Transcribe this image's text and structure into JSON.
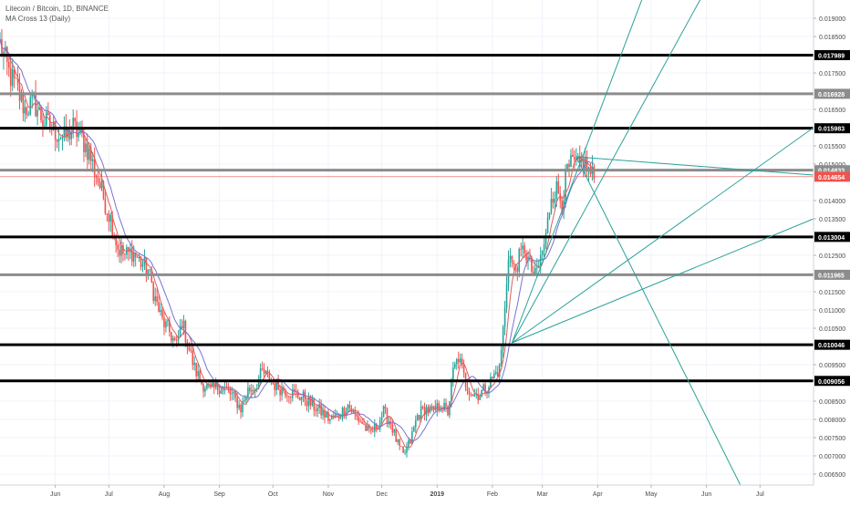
{
  "header": {
    "symbol_line": "Litecoin / Bitcoin, 1D, BINANCE",
    "indicator_line": "MA Cross 13 (Daily)"
  },
  "chart_data": {
    "type": "candlestick",
    "ylim": [
      0.0062,
      0.0195
    ],
    "x_domain": [
      "2018-05-01",
      "2019-07-31"
    ],
    "y_ticks": [
      "0.019000",
      "0.018500",
      "0.017500",
      "0.016500",
      "0.015500",
      "0.015000",
      "0.014000",
      "0.013500",
      "0.012500",
      "0.011500",
      "0.011000",
      "0.010500",
      "0.009500",
      "0.008500",
      "0.008000",
      "0.007500",
      "0.007000",
      "0.006500"
    ],
    "x_ticks": [
      {
        "label": "Jun",
        "date": "2018-06-01"
      },
      {
        "label": "Jul",
        "date": "2018-07-01"
      },
      {
        "label": "Aug",
        "date": "2018-08-01"
      },
      {
        "label": "Sep",
        "date": "2018-09-01"
      },
      {
        "label": "Oct",
        "date": "2018-10-01"
      },
      {
        "label": "Nov",
        "date": "2018-11-01"
      },
      {
        "label": "Dec",
        "date": "2018-12-01"
      },
      {
        "label": "2019",
        "date": "2019-01-01"
      },
      {
        "label": "Feb",
        "date": "2019-02-01"
      },
      {
        "label": "Mar",
        "date": "2019-03-01"
      },
      {
        "label": "Apr",
        "date": "2019-04-01"
      },
      {
        "label": "May",
        "date": "2019-05-01"
      },
      {
        "label": "Jun",
        "date": "2019-06-01"
      },
      {
        "label": "Jul",
        "date": "2019-07-01"
      }
    ],
    "horizontal_levels": [
      {
        "value": 0.017989,
        "label": "0.017989",
        "color": "#000000"
      },
      {
        "value": 0.016928,
        "label": "0.016928",
        "color": "#8c8c8c"
      },
      {
        "value": 0.015983,
        "label": "0.015983",
        "color": "#000000"
      },
      {
        "value": 0.014833,
        "label": "0.014833",
        "color": "#8c8c8c"
      },
      {
        "value": 0.013004,
        "label": "0.013004",
        "color": "#000000"
      },
      {
        "value": 0.011965,
        "label": "0.011965",
        "color": "#8c8c8c"
      },
      {
        "value": 0.010046,
        "label": "0.010046",
        "color": "#000000"
      },
      {
        "value": 0.009056,
        "label": "0.009056",
        "color": "#000000"
      }
    ],
    "last_price": {
      "value": 0.014654,
      "label": "0.014654",
      "color": "#ef5350"
    },
    "price_path": [
      [
        "2018-05-01",
        0.0183
      ],
      [
        "2018-05-06",
        0.0175
      ],
      [
        "2018-05-10",
        0.0171
      ],
      [
        "2018-05-15",
        0.0165
      ],
      [
        "2018-05-20",
        0.0167
      ],
      [
        "2018-05-25",
        0.0162
      ],
      [
        "2018-06-01",
        0.0159
      ],
      [
        "2018-06-06",
        0.0157
      ],
      [
        "2018-06-11",
        0.016
      ],
      [
        "2018-06-16",
        0.0157
      ],
      [
        "2018-06-20",
        0.0153
      ],
      [
        "2018-06-24",
        0.0147
      ],
      [
        "2018-06-28",
        0.0141
      ],
      [
        "2018-07-02",
        0.0135
      ],
      [
        "2018-07-06",
        0.0127
      ],
      [
        "2018-07-10",
        0.0125
      ],
      [
        "2018-07-14",
        0.0126
      ],
      [
        "2018-07-19",
        0.0123
      ],
      [
        "2018-07-23",
        0.0121
      ],
      [
        "2018-07-27",
        0.0113
      ],
      [
        "2018-07-31",
        0.0107
      ],
      [
        "2018-08-04",
        0.0104
      ],
      [
        "2018-08-08",
        0.01
      ],
      [
        "2018-08-11",
        0.0107
      ],
      [
        "2018-08-14",
        0.0101
      ],
      [
        "2018-08-18",
        0.0094
      ],
      [
        "2018-08-22",
        0.009
      ],
      [
        "2018-08-27",
        0.0088
      ],
      [
        "2018-09-01",
        0.0089
      ],
      [
        "2018-09-05",
        0.0088
      ],
      [
        "2018-09-09",
        0.0086
      ],
      [
        "2018-09-13",
        0.0083
      ],
      [
        "2018-09-17",
        0.0088
      ],
      [
        "2018-09-21",
        0.0089
      ],
      [
        "2018-09-25",
        0.0093
      ],
      [
        "2018-09-29",
        0.0091
      ],
      [
        "2018-10-03",
        0.0089
      ],
      [
        "2018-10-08",
        0.0088
      ],
      [
        "2018-10-13",
        0.0087
      ],
      [
        "2018-10-18",
        0.0086
      ],
      [
        "2018-10-23",
        0.0084
      ],
      [
        "2018-10-28",
        0.0082
      ],
      [
        "2018-11-02",
        0.008
      ],
      [
        "2018-11-07",
        0.0081
      ],
      [
        "2018-11-12",
        0.0084
      ],
      [
        "2018-11-16",
        0.0081
      ],
      [
        "2018-11-20",
        0.0079
      ],
      [
        "2018-11-24",
        0.0076
      ],
      [
        "2018-11-28",
        0.0078
      ],
      [
        "2018-12-02",
        0.0082
      ],
      [
        "2018-12-06",
        0.0079
      ],
      [
        "2018-12-10",
        0.0073
      ],
      [
        "2018-12-13",
        0.007
      ],
      [
        "2018-12-17",
        0.0074
      ],
      [
        "2018-12-21",
        0.0081
      ],
      [
        "2018-12-25",
        0.0083
      ],
      [
        "2018-12-30",
        0.0082
      ],
      [
        "2019-01-03",
        0.0084
      ],
      [
        "2019-01-07",
        0.0082
      ],
      [
        "2019-01-10",
        0.0093
      ],
      [
        "2019-01-13",
        0.0097
      ],
      [
        "2019-01-17",
        0.009
      ],
      [
        "2019-01-21",
        0.0087
      ],
      [
        "2019-01-25",
        0.0087
      ],
      [
        "2019-01-29",
        0.0089
      ],
      [
        "2019-02-02",
        0.0092
      ],
      [
        "2019-02-05",
        0.0094
      ],
      [
        "2019-02-08",
        0.011
      ],
      [
        "2019-02-10",
        0.0126
      ],
      [
        "2019-02-13",
        0.0121
      ],
      [
        "2019-02-16",
        0.0124
      ],
      [
        "2019-02-19",
        0.0127
      ],
      [
        "2019-02-22",
        0.0122
      ],
      [
        "2019-02-25",
        0.0119
      ],
      [
        "2019-02-28",
        0.0124
      ],
      [
        "2019-03-03",
        0.013
      ],
      [
        "2019-03-06",
        0.0142
      ],
      [
        "2019-03-09",
        0.0143
      ],
      [
        "2019-03-12",
        0.014
      ],
      [
        "2019-03-15",
        0.0148
      ],
      [
        "2019-03-18",
        0.015
      ],
      [
        "2019-03-21",
        0.0149
      ],
      [
        "2019-03-24",
        0.0151
      ],
      [
        "2019-03-27",
        0.0148
      ],
      [
        "2019-03-30",
        0.0146
      ]
    ],
    "moving_averages": [
      {
        "color": "#e05c5c",
        "smoothing": 6
      },
      {
        "color": "#7a72cf",
        "smoothing": 13
      }
    ],
    "trend_lines": [
      {
        "from": [
          "2019-02-12",
          0.0101
        ],
        "to": [
          "2019-06-15",
          0.026
        ],
        "color": "#2aa198"
      },
      {
        "from": [
          "2019-02-12",
          0.0101
        ],
        "to": [
          "2019-07-01",
          0.0225
        ],
        "color": "#2aa198"
      },
      {
        "from": [
          "2019-02-12",
          0.0101
        ],
        "to": [
          "2019-07-31",
          0.016
        ],
        "color": "#2aa198"
      },
      {
        "from": [
          "2019-02-12",
          0.0101
        ],
        "to": [
          "2019-07-31",
          0.0135
        ],
        "color": "#2aa198"
      },
      {
        "from": [
          "2019-03-20",
          0.0152
        ],
        "to": [
          "2019-07-31",
          0.0147
        ],
        "color": "#2aa198"
      },
      {
        "from": [
          "2019-03-20",
          0.0152
        ],
        "to": [
          "2019-06-20",
          0.0062
        ],
        "color": "#2aa198"
      }
    ],
    "colors": {
      "up": "#26a69a",
      "down": "#ef5350",
      "grid": "#f0f3fa",
      "axis_text": "#4a4a4a"
    },
    "grid": true
  }
}
